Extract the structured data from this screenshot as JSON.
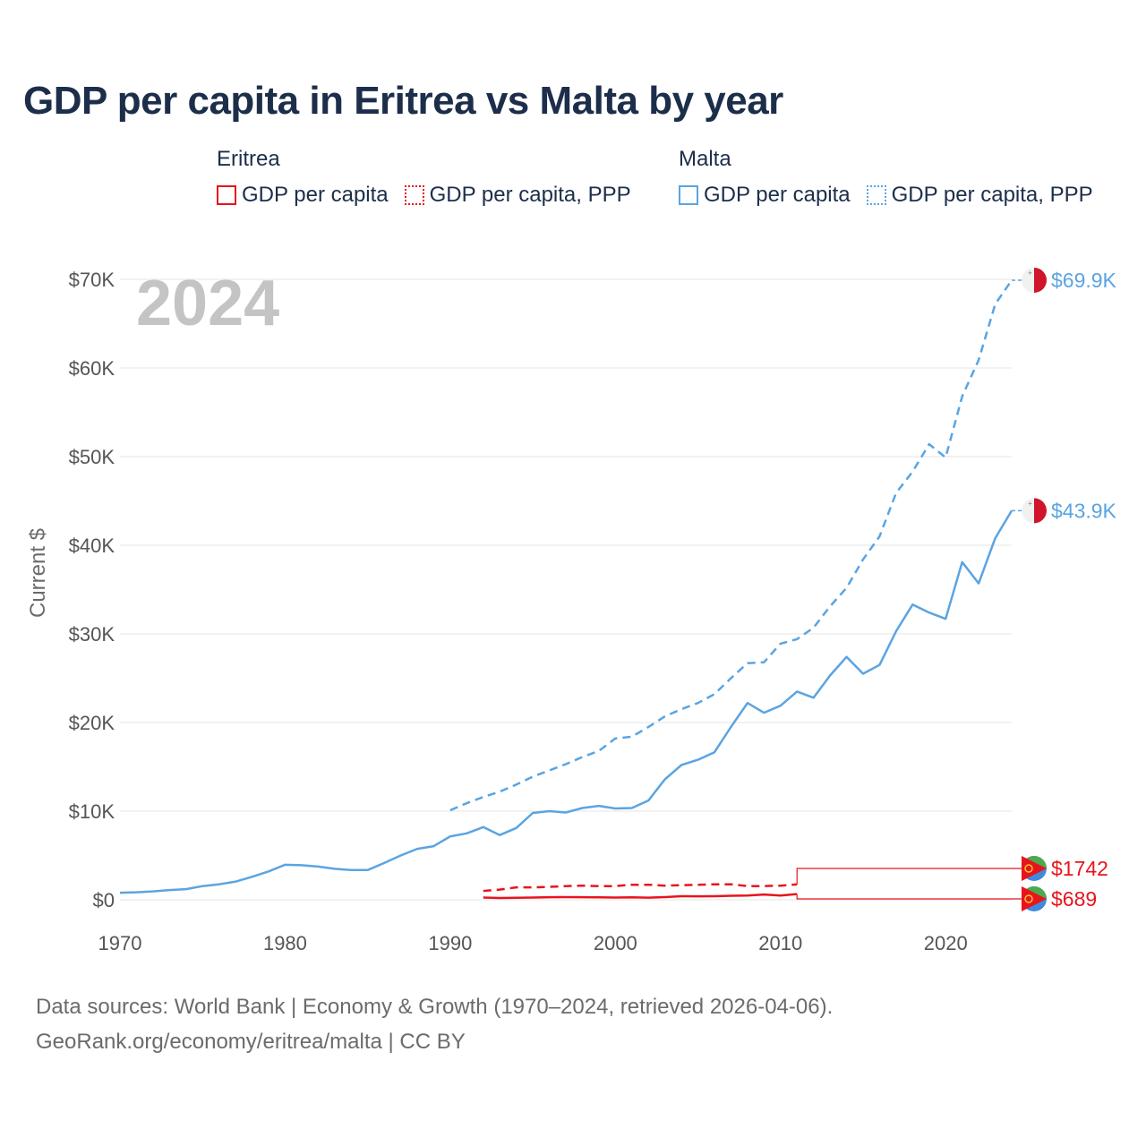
{
  "title": "GDP per capita in Eritrea vs Malta by year",
  "legend": {
    "eritrea": {
      "country": "Eritrea",
      "items": [
        "GDP per capita",
        "GDP per capita, PPP"
      ],
      "color": "#e8141c"
    },
    "malta": {
      "country": "Malta",
      "items": [
        "GDP per capita",
        "GDP per capita, PPP"
      ],
      "color": "#5aa4e2"
    }
  },
  "year_watermark": "2024",
  "footer": {
    "line1": "Data sources: World Bank | Economy & Growth (1970–2024, retrieved 2026-04-06).",
    "line2": "GeoRank.org/economy/eritrea/malta | CC BY"
  },
  "chart_data": {
    "type": "line",
    "title": "GDP per capita in Eritrea vs Malta by year",
    "xlabel": "",
    "ylabel": "Current $",
    "xlim": [
      1970,
      2024
    ],
    "ylim": [
      0,
      70000
    ],
    "x_ticks": [
      1970,
      1980,
      1990,
      2000,
      2010,
      2020
    ],
    "x_tick_labels": [
      "1970",
      "1980",
      "1990",
      "2000",
      "2010",
      "2020"
    ],
    "y_ticks": [
      0,
      10000,
      20000,
      30000,
      40000,
      50000,
      60000,
      70000
    ],
    "y_tick_labels": [
      "$0",
      "$10K",
      "$20K",
      "$30K",
      "$40K",
      "$50K",
      "$60K",
      "$70K"
    ],
    "grid": true,
    "legend_position": "top",
    "series": [
      {
        "name": "Malta GDP per capita",
        "country": "Malta",
        "style": "solid",
        "color": "#5aa4e2",
        "end_label": "$43.9K",
        "x": [
          1970,
          1971,
          1972,
          1973,
          1974,
          1975,
          1976,
          1977,
          1978,
          1979,
          1980,
          1981,
          1982,
          1983,
          1984,
          1985,
          1986,
          1987,
          1988,
          1989,
          1990,
          1991,
          1992,
          1993,
          1994,
          1995,
          1996,
          1997,
          1998,
          1999,
          2000,
          2001,
          2002,
          2003,
          2004,
          2005,
          2006,
          2007,
          2008,
          2009,
          2010,
          2011,
          2012,
          2013,
          2014,
          2015,
          2016,
          2017,
          2018,
          2019,
          2020,
          2021,
          2022,
          2023,
          2024
        ],
        "y": [
          800,
          850,
          950,
          1100,
          1200,
          1550,
          1750,
          2050,
          2600,
          3200,
          3950,
          3900,
          3750,
          3500,
          3350,
          3350,
          4150,
          5000,
          5750,
          6050,
          7150,
          7500,
          8200,
          7300,
          8100,
          9800,
          10000,
          9850,
          10350,
          10600,
          10300,
          10350,
          11200,
          13600,
          15200,
          15800,
          16650,
          19500,
          22200,
          21100,
          21900,
          23500,
          22800,
          25300,
          27400,
          25500,
          26500,
          30300,
          33300,
          32400,
          31700,
          38100,
          35700,
          40800,
          43900
        ]
      },
      {
        "name": "Malta GDP per capita, PPP",
        "country": "Malta",
        "style": "dashed",
        "color": "#5aa4e2",
        "end_label": "$69.9K",
        "x": [
          1990,
          1991,
          1992,
          1993,
          1994,
          1995,
          1996,
          1997,
          1998,
          1999,
          2000,
          2001,
          2002,
          2003,
          2004,
          2005,
          2006,
          2007,
          2008,
          2009,
          2010,
          2011,
          2012,
          2013,
          2014,
          2015,
          2016,
          2017,
          2018,
          2019,
          2020,
          2021,
          2022,
          2023,
          2024
        ],
        "y": [
          10100,
          10900,
          11600,
          12200,
          13000,
          13900,
          14600,
          15300,
          16100,
          16800,
          18200,
          18400,
          19500,
          20700,
          21500,
          22200,
          23200,
          25000,
          26700,
          26800,
          28900,
          29400,
          30700,
          33100,
          35200,
          38400,
          41000,
          45900,
          48300,
          51400,
          49900,
          56800,
          60900,
          67200,
          69900
        ]
      },
      {
        "name": "Eritrea GDP per capita",
        "country": "Eritrea",
        "style": "solid",
        "color": "#e8141c",
        "end_label": "$689",
        "x": [
          1992,
          1993,
          1994,
          1995,
          1996,
          1997,
          1998,
          1999,
          2000,
          2001,
          2002,
          2003,
          2004,
          2005,
          2006,
          2007,
          2008,
          2009,
          2010,
          2011,
          2024
        ],
        "y": [
          250,
          200,
          230,
          250,
          290,
          300,
          290,
          270,
          250,
          280,
          240,
          300,
          400,
          390,
          400,
          450,
          480,
          600,
          480,
          650,
          689
        ]
      },
      {
        "name": "Eritrea GDP per capita, PPP",
        "country": "Eritrea",
        "style": "dashed",
        "color": "#e8141c",
        "end_label": "$1742",
        "x": [
          1992,
          1993,
          1994,
          1995,
          1996,
          1997,
          1998,
          1999,
          2000,
          2001,
          2002,
          2003,
          2004,
          2005,
          2006,
          2007,
          2008,
          2009,
          2010,
          2011,
          2024
        ],
        "y": [
          1000,
          1150,
          1400,
          1400,
          1450,
          1550,
          1600,
          1550,
          1550,
          1700,
          1700,
          1600,
          1650,
          1700,
          1750,
          1750,
          1550,
          1550,
          1600,
          1742,
          1742
        ]
      }
    ]
  }
}
